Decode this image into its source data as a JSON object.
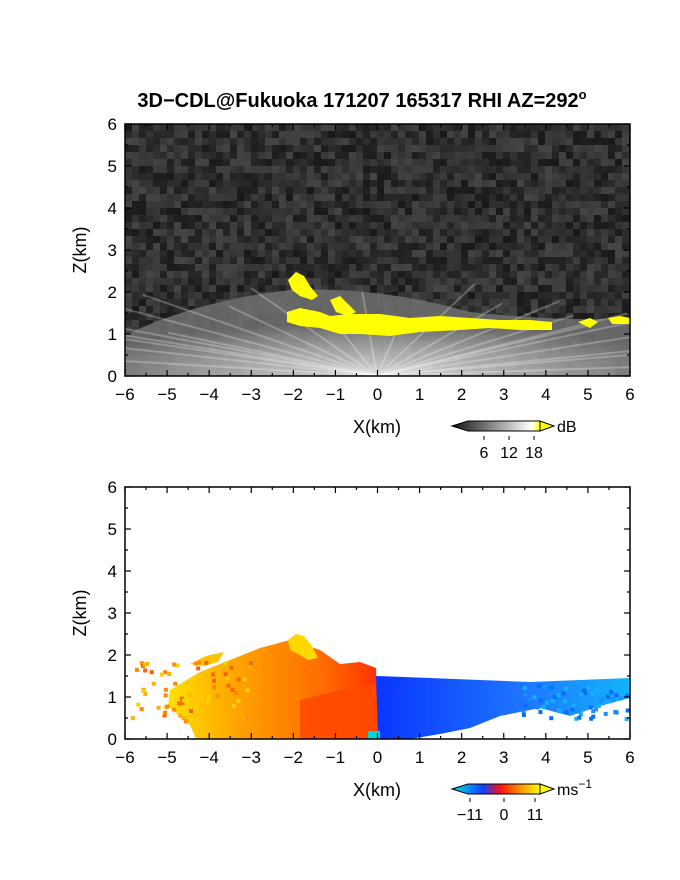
{
  "chart_data": [
    {
      "type": "heatmap",
      "title": "3D−CDL@Fukuoka 171207 165317 RHI AZ=292",
      "title_sup": "o",
      "xlabel": "X(km)",
      "ylabel": "Z(km)",
      "xlim": [
        -6,
        6
      ],
      "ylim": [
        0,
        6
      ],
      "xticks": [
        "−6",
        "−5",
        "−4",
        "−3",
        "−2",
        "−1",
        "0",
        "1",
        "2",
        "3",
        "4",
        "5",
        "6"
      ],
      "yticks": [
        "0",
        "1",
        "2",
        "3",
        "4",
        "5",
        "6"
      ],
      "grid": false,
      "colorbar": {
        "ticks": [
          "6",
          "12",
          "18"
        ],
        "unit": "dB",
        "colors": [
          "#101010",
          "#ffffff",
          "#ffff00"
        ]
      },
      "background_color": "#2a2a2a",
      "saturated_color": "#ffff00"
    },
    {
      "type": "heatmap",
      "xlabel": "X(km)",
      "ylabel": "Z(km)",
      "xlim": [
        -6,
        6
      ],
      "ylim": [
        0,
        6
      ],
      "xticks": [
        "−6",
        "−5",
        "−4",
        "−3",
        "−2",
        "−1",
        "0",
        "1",
        "2",
        "3",
        "4",
        "5",
        "6"
      ],
      "yticks": [
        "0",
        "1",
        "2",
        "3",
        "4",
        "5",
        "6"
      ],
      "grid": false,
      "colorbar": {
        "ticks": [
          "−11",
          "0",
          "11"
        ],
        "unit": "ms",
        "unit_sup": "−1",
        "colors": [
          "#00e5e5",
          "#1040ff",
          "#ff1010",
          "#ffa000",
          "#ffff00"
        ]
      },
      "background_color": "#ffffff",
      "negative_color": "#1550ff",
      "positive_color": "#ff5a00"
    }
  ]
}
